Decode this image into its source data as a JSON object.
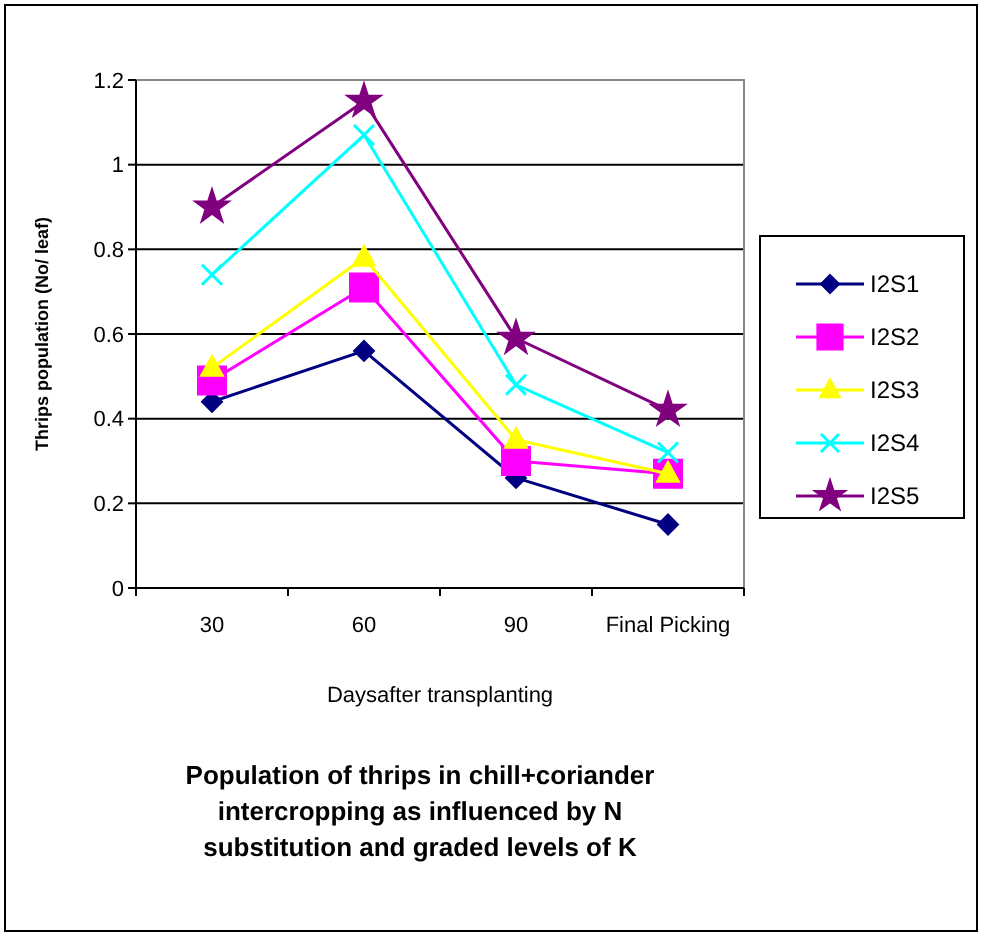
{
  "chart_data": {
    "type": "line",
    "title": "Population of thrips in chill+coriander intercropping as influenced by N substitution and graded levels of K",
    "xlabel": "Daysafter transplanting",
    "ylabel": "Thrips population (No/ leaf)",
    "categories": [
      "30",
      "60",
      "90",
      "Final Picking"
    ],
    "series": [
      {
        "name": "I2S1",
        "color": "#000080",
        "marker": "diamond",
        "values": [
          0.44,
          0.56,
          0.26,
          0.15
        ]
      },
      {
        "name": "I2S2",
        "color": "#ff00ff",
        "marker": "square",
        "values": [
          0.49,
          0.71,
          0.3,
          0.27
        ]
      },
      {
        "name": "I2S3",
        "color": "#ffff00",
        "marker": "triangle",
        "values": [
          0.52,
          0.78,
          0.35,
          0.27
        ]
      },
      {
        "name": "I2S4",
        "color": "#00ffff",
        "marker": "cross",
        "values": [
          0.74,
          1.07,
          0.48,
          0.32
        ]
      },
      {
        "name": "I2S5",
        "color": "#800080",
        "marker": "star",
        "values": [
          0.9,
          1.15,
          0.59,
          0.42
        ]
      }
    ],
    "ylim": [
      0,
      1.2
    ],
    "yticks": [
      0,
      0.2,
      0.4,
      0.6,
      0.8,
      1,
      1.2
    ],
    "grid": "y",
    "legend": "right",
    "line_style": "solid"
  }
}
